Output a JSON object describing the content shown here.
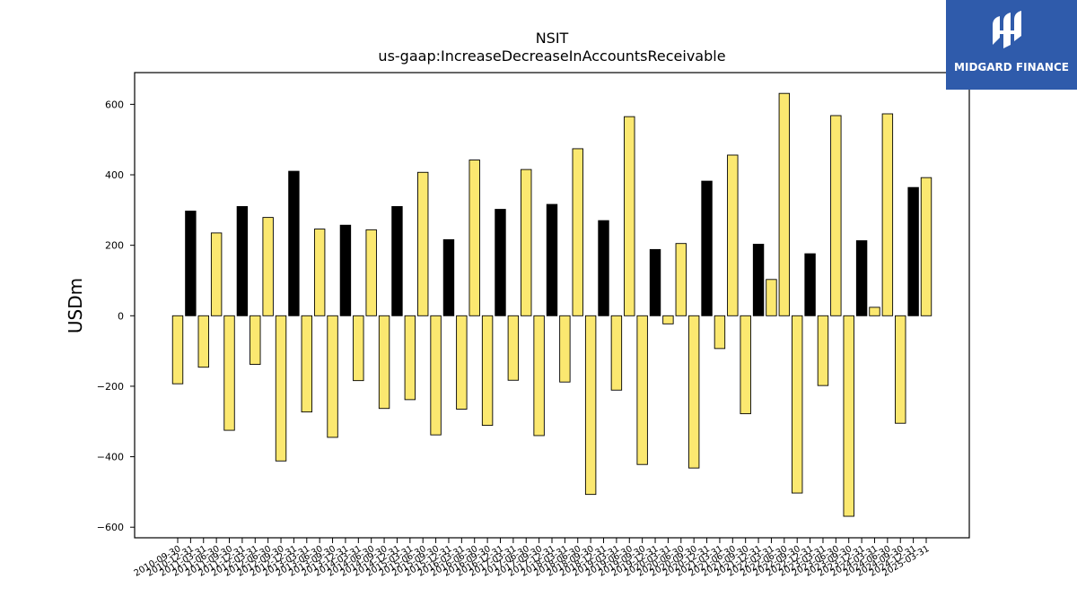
{
  "logo": {
    "text": "MIDGARD FINANCE"
  },
  "colors": {
    "positive_q4": "#000000",
    "other": "#fbe870",
    "edge": "#000000"
  },
  "chart_data": {
    "type": "bar",
    "title": "NSIT",
    "subtitle": "us-gaap:IncreaseDecreaseInAccountsReceivable",
    "xlabel": "",
    "ylabel": "USDm",
    "ylim": [
      -630,
      690
    ],
    "yticks": [
      -600,
      -400,
      -200,
      0,
      200,
      400,
      600
    ],
    "ytick_labels": [
      "−600",
      "−400",
      "−200",
      "0",
      "200",
      "400",
      "600"
    ],
    "grid": false,
    "categories": [
      "2010-09-30",
      "2010-12-31",
      "2011-03-31",
      "2011-06-30",
      "2011-09-30",
      "2011-12-31",
      "2012-03-31",
      "2012-06-30",
      "2012-09-30",
      "2012-12-31",
      "2013-03-31",
      "2013-06-30",
      "2013-09-30",
      "2013-12-31",
      "2014-03-31",
      "2014-06-30",
      "2014-09-30",
      "2014-12-31",
      "2015-03-31",
      "2015-06-30",
      "2015-09-30",
      "2015-12-31",
      "2016-03-31",
      "2016-06-30",
      "2016-09-30",
      "2016-12-31",
      "2017-03-31",
      "2017-06-30",
      "2017-09-30",
      "2017-12-31",
      "2018-03-31",
      "2018-06-30",
      "2018-09-30",
      "2018-12-31",
      "2019-03-31",
      "2019-06-30",
      "2019-09-30",
      "2019-12-31",
      "2020-03-31",
      "2020-06-30",
      "2020-09-30",
      "2020-12-31",
      "2021-03-31",
      "2021-06-30",
      "2021-09-30",
      "2021-12-31",
      "2022-03-31",
      "2022-06-30",
      "2022-09-30",
      "2022-12-31",
      "2023-03-31",
      "2023-06-30",
      "2023-09-30",
      "2023-12-31",
      "2024-03-31",
      "2024-06-30",
      "2024-09-30",
      "2024-12-31",
      "2025-03-31"
    ],
    "values": [
      -193,
      297,
      -146,
      235,
      -325,
      310,
      -138,
      279,
      -412,
      410,
      -273,
      246,
      -345,
      257,
      -184,
      244,
      -263,
      310,
      -238,
      407,
      -338,
      216,
      -265,
      442,
      -311,
      302,
      -183,
      415,
      -340,
      316,
      -188,
      474,
      -507,
      270,
      -211,
      565,
      -422,
      188,
      -23,
      205,
      -432,
      382,
      -93,
      456,
      -278,
      203,
      103,
      631,
      -503,
      176,
      -198,
      568,
      -569,
      213,
      24,
      573,
      -305,
      364,
      392
    ],
    "bar_color_rule": "positive Q4 (12-31) values in black, all others in yellow"
  }
}
